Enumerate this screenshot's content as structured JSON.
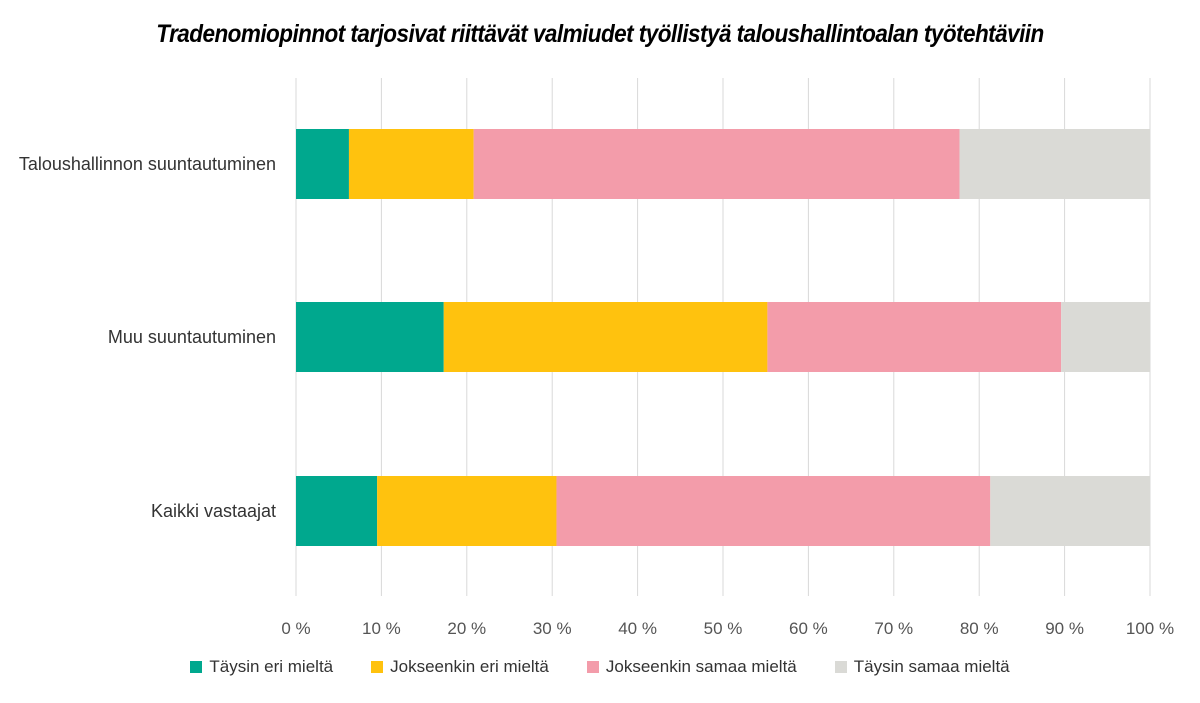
{
  "chart_data": {
    "type": "bar",
    "orientation": "horizontal",
    "stacked": true,
    "title": "Tradenomiopinnot tarjosivat riittävät valmiudet työllistyä taloushallintoalan työtehtäviin",
    "categories": [
      "Taloushallinnon suuntautuminen",
      "Muu suuntautuminen",
      "Kaikki vastaajat"
    ],
    "series": [
      {
        "name": "Täysin eri mieltä",
        "color": "#00A88E",
        "values": [
          6.2,
          17.3,
          9.5
        ]
      },
      {
        "name": "Jokseenkin eri mieltä",
        "color": "#FFC20E",
        "values": [
          14.6,
          37.9,
          21.0
        ]
      },
      {
        "name": "Jokseenkin samaa mieltä",
        "color": "#F39CAA",
        "values": [
          56.9,
          34.4,
          50.8
        ]
      },
      {
        "name": "Täysin samaa mieltä",
        "color": "#DADAD6",
        "values": [
          22.3,
          10.4,
          18.7
        ]
      }
    ],
    "x_ticks": [
      "0 %",
      "10 %",
      "20 %",
      "30 %",
      "40 %",
      "50 %",
      "60 %",
      "70 %",
      "80 %",
      "90 %",
      "100 %"
    ],
    "xlim": [
      0,
      100
    ],
    "grid": true,
    "legend_position": "bottom"
  }
}
